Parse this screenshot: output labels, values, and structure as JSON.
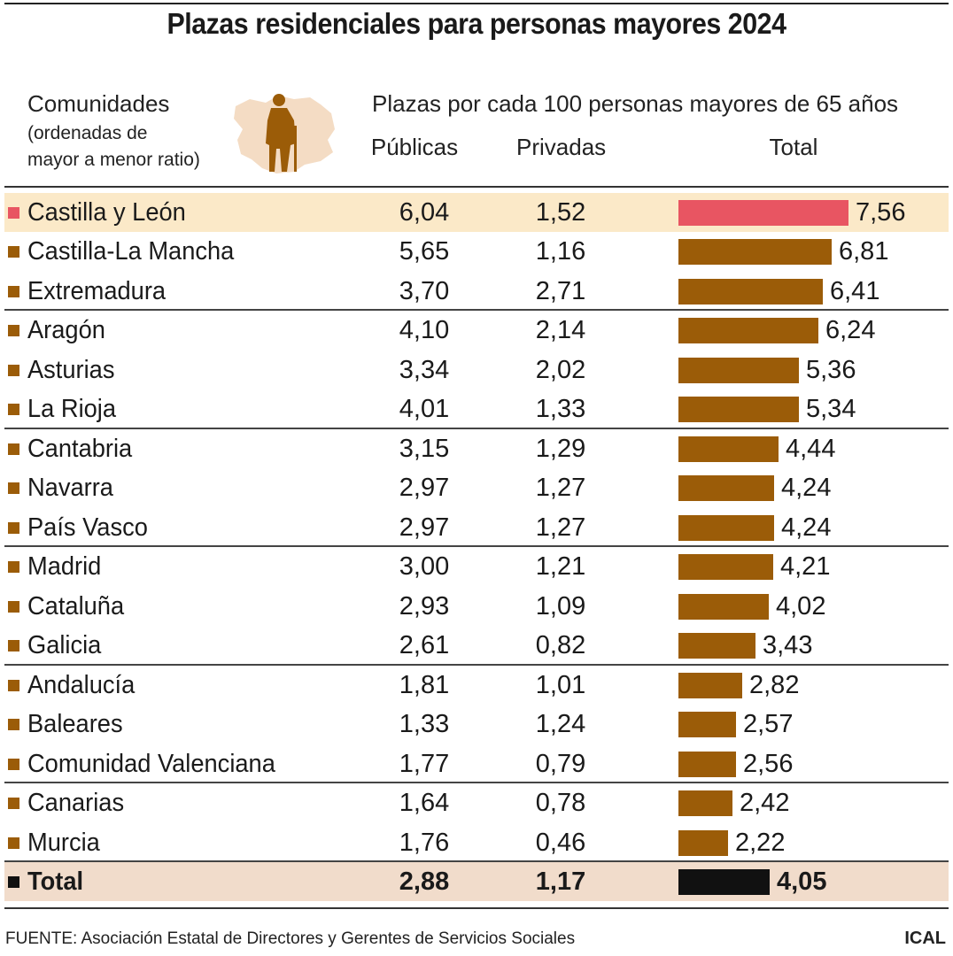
{
  "title": "Plazas residenciales para personas mayores 2024",
  "header": {
    "communities_label": "Comunidades",
    "order_note_line1": "(ordenadas de",
    "order_note_line2": "mayor a menor ratio)",
    "ratio_label": "Plazas por cada 100 personas mayores de 65 años",
    "col_public": "Públicas",
    "col_private": "Privadas",
    "col_total": "Total"
  },
  "source": "FUENTE: Asociación Estatal de Directores y Gerentes de Servicios Sociales",
  "brand": "ICAL",
  "colors": {
    "bar": "#9b5c08",
    "highlight_bar": "#e85562",
    "total_bar": "#111111",
    "highlight_row_bg": "#fbe9c8",
    "total_row_bg": "#f1dccb",
    "silhouette_map": "#f4dcc4",
    "silhouette_person": "#9b5c08"
  },
  "chart_data": {
    "type": "bar",
    "orientation": "horizontal",
    "title": "Plazas residenciales para personas mayores 2024",
    "xlabel": "Plazas por cada 100 personas mayores de 65 años",
    "ylabel": "Comunidades",
    "xlim": [
      0,
      7.56
    ],
    "grid": false,
    "legend": "none",
    "rows": [
      {
        "name": "Castilla y León",
        "publicas": "6,04",
        "privadas": "1,52",
        "total": "7,56",
        "value": 7.56,
        "highlight": true
      },
      {
        "name": "Castilla-La Mancha",
        "publicas": "5,65",
        "privadas": "1,16",
        "total": "6,81",
        "value": 6.81
      },
      {
        "name": "Extremadura",
        "publicas": "3,70",
        "privadas": "2,71",
        "total": "6,41",
        "value": 6.41
      },
      {
        "name": "Aragón",
        "publicas": "4,10",
        "privadas": "2,14",
        "total": "6,24",
        "value": 6.24
      },
      {
        "name": "Asturias",
        "publicas": "3,34",
        "privadas": "2,02",
        "total": "5,36",
        "value": 5.36
      },
      {
        "name": "La Rioja",
        "publicas": "4,01",
        "privadas": "1,33",
        "total": "5,34",
        "value": 5.34
      },
      {
        "name": "Cantabria",
        "publicas": "3,15",
        "privadas": "1,29",
        "total": "4,44",
        "value": 4.44
      },
      {
        "name": "Navarra",
        "publicas": "2,97",
        "privadas": "1,27",
        "total": "4,24",
        "value": 4.24
      },
      {
        "name": "País Vasco",
        "publicas": "2,97",
        "privadas": "1,27",
        "total": "4,24",
        "value": 4.24
      },
      {
        "name": "Madrid",
        "publicas": "3,00",
        "privadas": "1,21",
        "total": "4,21",
        "value": 4.21
      },
      {
        "name": "Cataluña",
        "publicas": "2,93",
        "privadas": "1,09",
        "total": "4,02",
        "value": 4.02
      },
      {
        "name": "Galicia",
        "publicas": "2,61",
        "privadas": "0,82",
        "total": "3,43",
        "value": 3.43
      },
      {
        "name": "Andalucía",
        "publicas": "1,81",
        "privadas": "1,01",
        "total": "2,82",
        "value": 2.82
      },
      {
        "name": "Baleares",
        "publicas": "1,33",
        "privadas": "1,24",
        "total": "2,57",
        "value": 2.57
      },
      {
        "name": "Comunidad Valenciana",
        "publicas": "1,77",
        "privadas": "0,79",
        "total": "2,56",
        "value": 2.56
      },
      {
        "name": "Canarias",
        "publicas": "1,64",
        "privadas": "0,78",
        "total": "2,42",
        "value": 2.42
      },
      {
        "name": "Murcia",
        "publicas": "1,76",
        "privadas": "0,46",
        "total": "2,22",
        "value": 2.22
      },
      {
        "name": "Total",
        "publicas": "2,88",
        "privadas": "1,17",
        "total": "4,05",
        "value": 4.05,
        "is_total": true
      }
    ]
  }
}
